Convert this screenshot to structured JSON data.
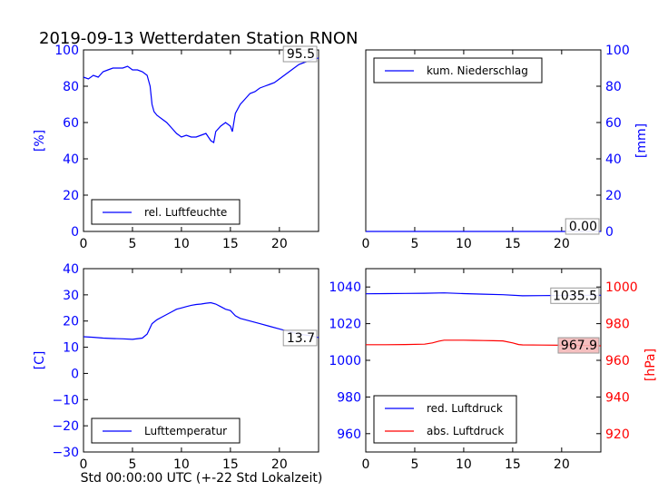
{
  "title": "2019-09-13 Wetterdaten Station RNON",
  "xlabel": "Std 00:00:00 UTC (+-22 Std Lokalzeit)",
  "colors": {
    "blue": "#0000ff",
    "red": "#ff0000"
  },
  "chart_data": [
    {
      "type": "line",
      "panel": "top-left",
      "ylabel": "[%]",
      "xlim": [
        0,
        24
      ],
      "ylim": [
        0,
        100
      ],
      "xticks": [
        "0",
        "5",
        "10",
        "15",
        "20"
      ],
      "yticks": [
        "0",
        "20",
        "40",
        "60",
        "80",
        "100"
      ],
      "legend": "bottom-left",
      "current_value": "95.5",
      "series": [
        {
          "name": "rel. Luftfeuchte",
          "color": "#0000ff",
          "x": [
            0,
            0.5,
            1,
            1.5,
            2,
            2.5,
            3,
            3.5,
            4,
            4.5,
            5,
            5.5,
            6,
            6.5,
            6.8,
            7,
            7.2,
            7.5,
            8,
            8.5,
            9,
            9.5,
            10,
            10.5,
            11,
            11.5,
            12,
            12.5,
            13,
            13.3,
            13.5,
            14,
            14.5,
            15,
            15.2,
            15.5,
            16,
            16.5,
            17,
            17.5,
            18,
            18.5,
            19,
            19.5,
            20,
            20.5,
            21,
            21.5,
            22,
            22.5,
            23,
            23.5,
            24
          ],
          "y": [
            85,
            84,
            86,
            85,
            88,
            89,
            90,
            90,
            90,
            91,
            89,
            89,
            88,
            86,
            80,
            70,
            66,
            64,
            62,
            60,
            57,
            54,
            52,
            53,
            52,
            52,
            53,
            54,
            50,
            49,
            55,
            58,
            60,
            58,
            55,
            65,
            70,
            73,
            76,
            77,
            79,
            80,
            81,
            82,
            84,
            86,
            88,
            90,
            92,
            93,
            94,
            95,
            95.5
          ]
        }
      ]
    },
    {
      "type": "line",
      "panel": "top-right",
      "ylabel": "[mm]",
      "xlim": [
        0,
        24
      ],
      "ylim": [
        0,
        100
      ],
      "xticks": [
        "0",
        "5",
        "10",
        "15",
        "20"
      ],
      "yticks": [
        "0",
        "20",
        "40",
        "60",
        "80",
        "100"
      ],
      "legend": "top-left",
      "current_value": "0.00",
      "series": [
        {
          "name": "kum. Niederschlag",
          "color": "#0000ff",
          "x": [
            0,
            24
          ],
          "y": [
            0,
            0
          ]
        }
      ]
    },
    {
      "type": "line",
      "panel": "bottom-left",
      "ylabel": "[C]",
      "xlim": [
        0,
        24
      ],
      "ylim": [
        -30,
        40
      ],
      "xticks": [
        "0",
        "5",
        "10",
        "15",
        "20"
      ],
      "yticks": [
        "−30",
        "−20",
        "−10",
        "0",
        "10",
        "20",
        "30",
        "40"
      ],
      "legend": "bottom-left",
      "current_value": "13.7",
      "series": [
        {
          "name": "Lufttemperatur",
          "color": "#0000ff",
          "x": [
            0,
            1,
            2,
            3,
            4,
            5,
            6,
            6.5,
            7,
            7.5,
            8,
            8.5,
            9,
            9.5,
            10,
            10.5,
            11,
            11.5,
            12,
            12.5,
            13,
            13.5,
            14,
            14.5,
            15,
            15.5,
            16,
            17,
            18,
            19,
            20,
            21,
            22,
            23,
            24
          ],
          "y": [
            14,
            13.8,
            13.5,
            13.3,
            13.2,
            13,
            13.5,
            15,
            19,
            20.5,
            21.5,
            22.5,
            23.5,
            24.5,
            25,
            25.5,
            26,
            26.3,
            26.5,
            26.8,
            27,
            26.5,
            25.5,
            24.5,
            24,
            22,
            21,
            20,
            19,
            18,
            17,
            16,
            15,
            14.5,
            13.7
          ]
        }
      ]
    },
    {
      "type": "line",
      "panel": "bottom-right",
      "ylabel_right": "[hPa]",
      "xlim": [
        0,
        24
      ],
      "ylim_left": [
        950,
        1050
      ],
      "ylim_right": [
        910,
        1010
      ],
      "xticks": [
        "0",
        "5",
        "10",
        "15",
        "20"
      ],
      "yticks_left": [
        "960",
        "980",
        "1000",
        "1020",
        "1040"
      ],
      "yticks_right": [
        "920",
        "940",
        "960",
        "980",
        "1000"
      ],
      "legend": "bottom-left",
      "current_values": [
        "1035.5",
        "967.9"
      ],
      "series": [
        {
          "name": "red. Luftdruck",
          "color": "#0000ff",
          "axis": "left",
          "x": [
            0,
            2,
            4,
            6,
            8,
            10,
            12,
            14,
            16,
            18,
            20,
            22,
            24
          ],
          "y": [
            1036.3,
            1036.4,
            1036.5,
            1036.6,
            1036.8,
            1036.4,
            1036.1,
            1035.8,
            1035.2,
            1035.3,
            1035.4,
            1035.4,
            1035.5
          ]
        },
        {
          "name": "abs. Luftdruck",
          "color": "#ff0000",
          "axis": "right",
          "x": [
            0,
            2,
            4,
            6,
            6.8,
            7.5,
            8,
            9,
            10,
            11,
            12,
            13,
            14,
            15,
            15.6,
            16,
            18,
            20,
            22,
            24
          ],
          "y": [
            968.5,
            968.5,
            968.6,
            968.8,
            969.5,
            970.5,
            971,
            971,
            971,
            970.9,
            970.8,
            970.7,
            970.6,
            969.5,
            968.6,
            968.4,
            968.3,
            968.2,
            968.1,
            967.9
          ]
        }
      ]
    }
  ]
}
